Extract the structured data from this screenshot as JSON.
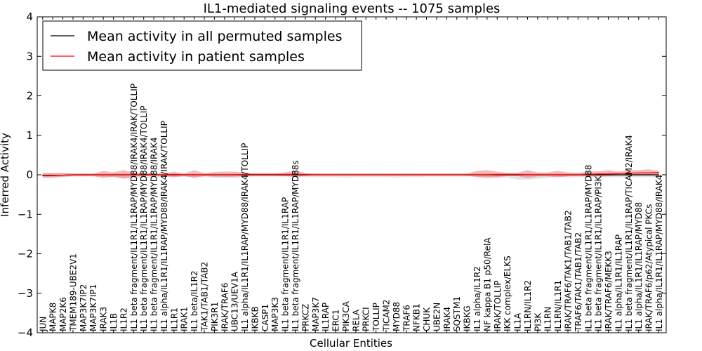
{
  "chart_data": {
    "type": "line",
    "title": "IL1-mediated signaling events -- 1075 samples",
    "xlabel": "Cellular Entities",
    "ylabel": "Inferred Activity",
    "ylim": [
      -4,
      4
    ],
    "yticks": [
      -4,
      -3,
      -2,
      -1,
      0,
      1,
      2,
      3,
      4
    ],
    "grid": false,
    "legend_position": "top-left",
    "categories": [
      "JUN",
      "MAPK8",
      "MAP2K6",
      "TMEM189-UBE2V1",
      "MAP3K7IP2",
      "MAP3K7IP1",
      "IRAK3",
      "IL1B",
      "IL1R2",
      "IL1 beta fragment/IL1R1/IL1RAP/MYD88/IRAK4/IRAK/TOLLIP",
      "IL1 beta fragment/IL1R1/IL1RAP/MYD88/IRAK4/TOLLIP",
      "IL1 beta fragment/IL1R1/IL1RAP/MYD88/IRAK4",
      "IL1 alpha/IL1R1/IL1RAP/MYD88/IRAK4/IRAK/TOLLIP",
      "IL1R1",
      "IRAK1",
      "IL1 beta/IL1R2",
      "TAK1/TAB1/TAB2",
      "PIK3R1",
      "IRAK/TRAF6",
      "UBC13/UEV1A",
      "IL1 alpha/IL1R1/IL1RAP/MYD88/IRAK4/TOLLIP",
      "IKBKB",
      "CASP1",
      "MAP3K3",
      "IL1 beta fragment/IL1R1/IL1RAP",
      "IL1 beta fragment/IL1R1/IL1RAP/MYD88s",
      "PRKCZ",
      "MAP3K7",
      "IL1RAP",
      "ERC1",
      "PIK3CA",
      "RELA",
      "PRKCI",
      "TOLLIP",
      "TICAM2",
      "MYD88",
      "TRAF6",
      "NFKB1",
      "CHUK",
      "UBE2N",
      "IRAK4",
      "SQSTM1",
      "IKBKG",
      "IL1 alpha/IL1R2",
      "NF kappa B1 p50/RelA",
      "IRAK/TOLLIP",
      "IKK complex/ELKS",
      "IL1A",
      "IL1RN/IL1R2",
      "PI3K",
      "IL1RN",
      "IL1RN/IL1R1",
      "IRAK/TRAF6/TAK1/TAB1/TAB2",
      "TRAF6/TAK1/TAB1/TAB2",
      "IL1 beta fragment/IL1R1/IL1RAP/MYD88",
      "IL1 beta fragment/IL1R1/IL1RAP/PI3K",
      "IRAK/TRAF6/MEKK3",
      "IL1 alpha/IL1R1/IL1RAP",
      "IL1 beta fragment/IL1R1/IL1RAP/TICAM2/IRAK4",
      "IL1 alpha/IL1R1/IL1RAP/MYD88",
      "IRAK/TRAF6/p62/Atypical PKCs",
      "IL1 alpha/IL1R1/IL1RAP/MYD88/IRAK4"
    ],
    "series": [
      {
        "name": "Mean activity in all permuted samples",
        "color": "#000000",
        "values": [
          -0.01,
          -0.01,
          -0.01,
          0.0,
          0.0,
          0.0,
          0.0,
          0.0,
          0.0,
          0.0,
          0.0,
          0.0,
          0.0,
          0.0,
          0.0,
          0.0,
          0.0,
          0.0,
          0.0,
          0.0,
          0.0,
          0.0,
          0.0,
          0.0,
          0.0,
          0.0,
          0.0,
          0.0,
          0.0,
          0.0,
          0.0,
          0.0,
          0.0,
          0.0,
          0.0,
          0.0,
          0.0,
          0.0,
          0.0,
          0.0,
          0.0,
          0.0,
          0.0,
          0.0,
          0.0,
          0.0,
          0.0,
          0.0,
          0.0,
          0.0,
          0.0,
          0.0,
          0.0,
          0.0,
          0.0,
          0.0,
          0.0,
          0.0,
          0.0,
          0.0,
          0.0,
          0.0
        ],
        "band_upper": [
          0.05,
          0.05,
          0.05,
          0.04,
          0.04,
          0.04,
          0.04,
          0.05,
          0.05,
          0.05,
          0.05,
          0.05,
          0.05,
          0.04,
          0.04,
          0.04,
          0.04,
          0.04,
          0.05,
          0.05,
          0.04,
          0.04,
          0.04,
          0.04,
          0.04,
          0.04,
          0.04,
          0.04,
          0.04,
          0.04,
          0.04,
          0.04,
          0.04,
          0.04,
          0.04,
          0.04,
          0.04,
          0.04,
          0.04,
          0.04,
          0.04,
          0.04,
          0.04,
          0.05,
          0.05,
          0.05,
          0.05,
          0.05,
          0.05,
          0.05,
          0.05,
          0.05,
          0.05,
          0.05,
          0.05,
          0.05,
          0.05,
          0.05,
          0.05,
          0.05,
          0.05,
          0.05
        ],
        "band_lower": [
          -0.07,
          -0.07,
          -0.06,
          -0.05,
          -0.05,
          -0.05,
          -0.05,
          -0.06,
          -0.08,
          -0.08,
          -0.07,
          -0.06,
          -0.06,
          -0.06,
          -0.05,
          -0.06,
          -0.06,
          -0.07,
          -0.08,
          -0.08,
          -0.06,
          -0.05,
          -0.05,
          -0.05,
          -0.05,
          -0.05,
          -0.06,
          -0.06,
          -0.06,
          -0.06,
          -0.07,
          -0.06,
          -0.06,
          -0.06,
          -0.06,
          -0.07,
          -0.06,
          -0.06,
          -0.05,
          -0.05,
          -0.05,
          -0.05,
          -0.05,
          -0.05,
          -0.06,
          -0.07,
          -0.07,
          -0.12,
          -0.12,
          -0.1,
          -0.07,
          -0.06,
          -0.06,
          -0.06,
          -0.06,
          -0.06,
          -0.06,
          -0.06,
          -0.06,
          -0.06,
          -0.06,
          -0.06
        ]
      },
      {
        "name": "Mean activity in patient samples",
        "color": "#ff0000",
        "values": [
          -0.02,
          -0.02,
          -0.01,
          0.0,
          0.0,
          0.0,
          0.0,
          0.0,
          0.0,
          0.0,
          0.01,
          0.0,
          0.0,
          0.01,
          0.0,
          0.0,
          0.0,
          0.0,
          0.0,
          0.0,
          0.01,
          0.01,
          0.01,
          0.01,
          0.01,
          0.01,
          0.01,
          0.0,
          0.0,
          0.0,
          0.0,
          0.0,
          0.0,
          0.0,
          0.0,
          0.0,
          0.0,
          0.0,
          0.0,
          0.0,
          0.0,
          0.0,
          0.0,
          0.0,
          0.0,
          0.01,
          0.01,
          0.01,
          0.0,
          0.0,
          0.0,
          0.0,
          0.0,
          0.0,
          0.01,
          0.02,
          0.02,
          0.03,
          0.04,
          0.05,
          0.05,
          0.06
        ],
        "band_upper": [
          0.04,
          0.04,
          0.04,
          0.03,
          0.03,
          0.03,
          0.1,
          0.06,
          0.12,
          0.06,
          0.05,
          0.03,
          0.03,
          0.08,
          0.03,
          0.12,
          0.04,
          0.07,
          0.08,
          0.08,
          0.05,
          0.04,
          0.04,
          0.04,
          0.06,
          0.12,
          0.04,
          0.03,
          0.03,
          0.03,
          0.03,
          0.03,
          0.03,
          0.03,
          0.03,
          0.03,
          0.03,
          0.03,
          0.03,
          0.03,
          0.03,
          0.03,
          0.03,
          0.1,
          0.12,
          0.08,
          0.05,
          0.05,
          0.12,
          0.06,
          0.06,
          0.1,
          0.06,
          0.05,
          0.08,
          0.09,
          0.12,
          0.08,
          0.12,
          0.12,
          0.14,
          0.1
        ],
        "band_lower": [
          -0.07,
          -0.07,
          -0.05,
          -0.03,
          -0.03,
          -0.03,
          -0.08,
          -0.05,
          -0.1,
          -0.05,
          -0.03,
          -0.03,
          -0.03,
          -0.06,
          -0.03,
          -0.08,
          -0.03,
          -0.05,
          -0.05,
          -0.05,
          -0.03,
          -0.02,
          -0.02,
          -0.02,
          -0.03,
          -0.06,
          -0.02,
          -0.02,
          -0.02,
          -0.02,
          -0.02,
          -0.02,
          -0.02,
          -0.02,
          -0.02,
          -0.02,
          -0.02,
          -0.02,
          -0.02,
          -0.02,
          -0.02,
          -0.02,
          -0.02,
          -0.06,
          -0.08,
          -0.06,
          -0.03,
          -0.03,
          -0.08,
          -0.04,
          -0.04,
          -0.06,
          -0.04,
          -0.03,
          -0.04,
          -0.04,
          -0.04,
          -0.02,
          -0.03,
          -0.02,
          -0.02,
          -0.01
        ]
      }
    ]
  }
}
